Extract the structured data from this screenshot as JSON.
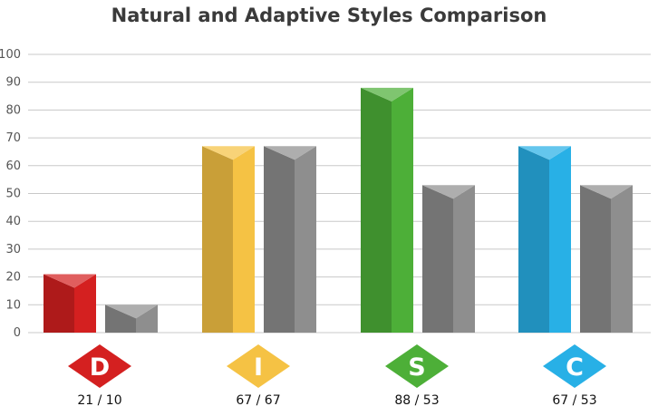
{
  "chart_data": {
    "type": "bar",
    "title": "Natural and Adaptive Styles Comparison",
    "xlabel": "",
    "ylabel": "",
    "ylim": [
      0,
      100
    ],
    "yticks": [
      0,
      10,
      20,
      30,
      40,
      50,
      60,
      70,
      80,
      90,
      100
    ],
    "grid": true,
    "categories": [
      "D",
      "I",
      "S",
      "C"
    ],
    "series": [
      {
        "values": [
          21,
          67,
          88,
          67
        ]
      },
      {
        "values": [
          10,
          67,
          53,
          53
        ]
      }
    ],
    "category_labels": [
      "21 / 10",
      "67 / 67",
      "88 / 53",
      "67 / 53"
    ],
    "colors": {
      "D": "#d42020",
      "I": "#f5c244",
      "S": "#4daf38",
      "C": "#28b0e6",
      "adaptive": "#8e8e8e",
      "grid": "#c8c8c8"
    }
  }
}
